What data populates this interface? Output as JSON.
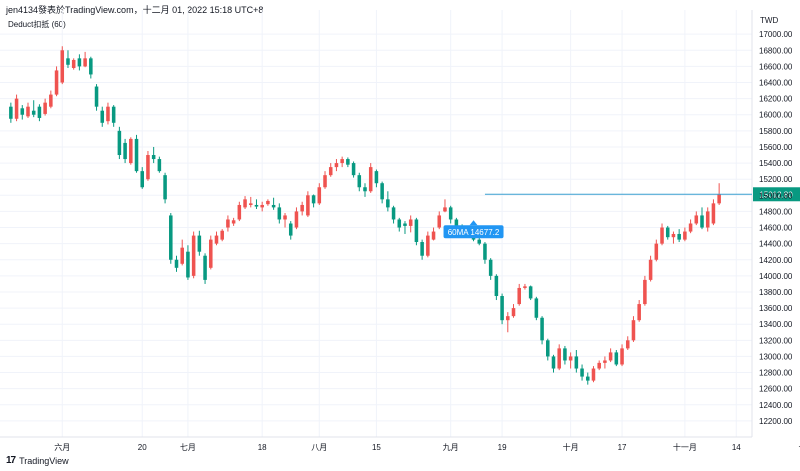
{
  "header": {
    "title": "jen4134發表於TradingView.com，十二月 01, 2022 15:18 UTC+8"
  },
  "indicator_label": "Deduct扣抵 (60)",
  "footer": {
    "brand": "TradingView",
    "logo": "17"
  },
  "colors": {
    "up": "#ef5350",
    "down": "#089981",
    "hline": "#3a9fd0",
    "ma_label": "#2196f3",
    "grid": "#f0f3fa"
  },
  "chart_data": {
    "type": "candlestick",
    "currency": "TWD",
    "ylim": [
      12000,
      17300
    ],
    "y_ticks": [
      12200,
      12400,
      12600,
      12800,
      13000,
      13200,
      13400,
      13600,
      13800,
      14000,
      14200,
      14400,
      14600,
      14800,
      15000,
      15200,
      15400,
      15600,
      15800,
      16000,
      16200,
      16400,
      16600,
      16800,
      17000
    ],
    "x_ticks": [
      {
        "label": "六月",
        "index": 9
      },
      {
        "label": "20",
        "index": 23
      },
      {
        "label": "七月",
        "index": 31
      },
      {
        "label": "18",
        "index": 44
      },
      {
        "label": "八月",
        "index": 54
      },
      {
        "label": "15",
        "index": 64
      },
      {
        "label": "九月",
        "index": 77
      },
      {
        "label": "19",
        "index": 86
      },
      {
        "label": "十月",
        "index": 98
      },
      {
        "label": "17",
        "index": 107
      },
      {
        "label": "十一月",
        "index": 118
      },
      {
        "label": "14",
        "index": 127
      },
      {
        "label": "十二月",
        "index": 140
      }
    ],
    "last_price": 15012.8,
    "ma_label": "60MA 14677.2",
    "ma_index": 81,
    "ma_value": 14677.2,
    "candles": [
      [
        16100,
        16150,
        15900,
        15950
      ],
      [
        15950,
        16250,
        15920,
        16200
      ],
      [
        16080,
        16120,
        15940,
        16000
      ],
      [
        15980,
        16150,
        15960,
        16100
      ],
      [
        16050,
        16180,
        15970,
        16000
      ],
      [
        16100,
        16130,
        15920,
        15960
      ],
      [
        16010,
        16200,
        15990,
        16150
      ],
      [
        16100,
        16300,
        16080,
        16250
      ],
      [
        16250,
        16600,
        16230,
        16550
      ],
      [
        16400,
        16850,
        16380,
        16800
      ],
      [
        16700,
        16800,
        16580,
        16620
      ],
      [
        16580,
        16700,
        16560,
        16680
      ],
      [
        16700,
        16750,
        16550,
        16600
      ],
      [
        16600,
        16780,
        16590,
        16700
      ],
      [
        16700,
        16720,
        16450,
        16500
      ],
      [
        16350,
        16380,
        16050,
        16100
      ],
      [
        16050,
        16100,
        15850,
        15900
      ],
      [
        15920,
        16150,
        15880,
        16100
      ],
      [
        16100,
        16120,
        15850,
        15900
      ],
      [
        15800,
        15850,
        15450,
        15500
      ],
      [
        15650,
        15700,
        15400,
        15450
      ],
      [
        15400,
        15720,
        15380,
        15700
      ],
      [
        15700,
        15750,
        15280,
        15300
      ],
      [
        15300,
        15350,
        15080,
        15100
      ],
      [
        15200,
        15550,
        15180,
        15500
      ],
      [
        15500,
        15600,
        15400,
        15450
      ],
      [
        15450,
        15480,
        15280,
        15300
      ],
      [
        15250,
        15280,
        14900,
        14950
      ],
      [
        14750,
        14780,
        14150,
        14200
      ],
      [
        14200,
        14250,
        14050,
        14100
      ],
      [
        14150,
        14450,
        14130,
        14350
      ],
      [
        14300,
        14380,
        13950,
        13980
      ],
      [
        14000,
        14550,
        13970,
        14500
      ],
      [
        14500,
        14560,
        14250,
        14300
      ],
      [
        14250,
        14280,
        13900,
        13950
      ],
      [
        14100,
        14500,
        14080,
        14450
      ],
      [
        14400,
        14550,
        14380,
        14500
      ],
      [
        14450,
        14580,
        14430,
        14560
      ],
      [
        14600,
        14750,
        14550,
        14700
      ],
      [
        14650,
        14720,
        14620,
        14690
      ],
      [
        14700,
        14920,
        14680,
        14880
      ],
      [
        14850,
        14990,
        14830,
        14950
      ],
      [
        14880,
        14980,
        14850,
        14900
      ],
      [
        14880,
        14950,
        14830,
        14860
      ],
      [
        14850,
        14920,
        14800,
        14880
      ],
      [
        14890,
        14950,
        14870,
        14930
      ],
      [
        14880,
        14970,
        14820,
        14850
      ],
      [
        14850,
        14900,
        14650,
        14700
      ],
      [
        14700,
        14780,
        14600,
        14750
      ],
      [
        14650,
        14680,
        14450,
        14500
      ],
      [
        14600,
        14850,
        14580,
        14800
      ],
      [
        14800,
        14920,
        14750,
        14880
      ],
      [
        14750,
        15050,
        14730,
        15000
      ],
      [
        15000,
        15010,
        14850,
        14900
      ],
      [
        14900,
        15150,
        14880,
        15100
      ],
      [
        15100,
        15300,
        15080,
        15250
      ],
      [
        15250,
        15400,
        15230,
        15350
      ],
      [
        15350,
        15450,
        15300,
        15400
      ],
      [
        15400,
        15480,
        15350,
        15450
      ],
      [
        15450,
        15470,
        15350,
        15380
      ],
      [
        15400,
        15420,
        15220,
        15250
      ],
      [
        15250,
        15280,
        15050,
        15100
      ],
      [
        15100,
        15150,
        14980,
        15050
      ],
      [
        15050,
        15400,
        15030,
        15350
      ],
      [
        15300,
        15320,
        15100,
        15150
      ],
      [
        15150,
        15170,
        14900,
        14950
      ],
      [
        14950,
        15050,
        14800,
        14850
      ],
      [
        14850,
        14870,
        14650,
        14700
      ],
      [
        14700,
        14720,
        14550,
        14600
      ],
      [
        14650,
        14680,
        14520,
        14620
      ],
      [
        14620,
        14750,
        14540,
        14700
      ],
      [
        14700,
        14720,
        14380,
        14420
      ],
      [
        14420,
        14450,
        14200,
        14250
      ],
      [
        14250,
        14550,
        14230,
        14500
      ],
      [
        14450,
        14600,
        14440,
        14550
      ],
      [
        14600,
        14800,
        14580,
        14750
      ],
      [
        14800,
        14950,
        14790,
        14850
      ],
      [
        14850,
        14870,
        14650,
        14700
      ],
      [
        14700,
        14720,
        14600,
        14620
      ],
      [
        14620,
        14640,
        14520,
        14550
      ],
      [
        14550,
        14620,
        14530,
        14600
      ],
      [
        14580,
        14600,
        14430,
        14450
      ],
      [
        14450,
        14480,
        14380,
        14400
      ],
      [
        14400,
        14420,
        14150,
        14200
      ],
      [
        14200,
        14220,
        13950,
        14000
      ],
      [
        14000,
        14020,
        13700,
        13750
      ],
      [
        13750,
        13780,
        13400,
        13450
      ],
      [
        13450,
        13550,
        13300,
        13500
      ],
      [
        13500,
        13650,
        13480,
        13600
      ],
      [
        13650,
        13900,
        13630,
        13850
      ],
      [
        13850,
        13900,
        13830,
        13870
      ],
      [
        13870,
        13880,
        13700,
        13720
      ],
      [
        13720,
        13740,
        13450,
        13480
      ],
      [
        13480,
        13500,
        13150,
        13200
      ],
      [
        13200,
        13220,
        12950,
        13000
      ],
      [
        13000,
        13020,
        12800,
        12850
      ],
      [
        12850,
        13150,
        12830,
        13100
      ],
      [
        13100,
        13130,
        12900,
        12950
      ],
      [
        12950,
        13050,
        12850,
        13000
      ],
      [
        13000,
        13080,
        12800,
        12850
      ],
      [
        12850,
        12900,
        12700,
        12750
      ],
      [
        12750,
        12800,
        12650,
        12700
      ],
      [
        12700,
        12880,
        12680,
        12850
      ],
      [
        12850,
        12950,
        12830,
        12920
      ],
      [
        12920,
        13000,
        12850,
        12950
      ],
      [
        12950,
        13100,
        12930,
        13050
      ],
      [
        13050,
        13080,
        12880,
        12900
      ],
      [
        12900,
        13150,
        12880,
        13100
      ],
      [
        13100,
        13250,
        13080,
        13200
      ],
      [
        13200,
        13500,
        13180,
        13450
      ],
      [
        13450,
        13700,
        13430,
        13650
      ],
      [
        13650,
        14000,
        13630,
        13950
      ],
      [
        13950,
        14250,
        13930,
        14200
      ],
      [
        14200,
        14450,
        14180,
        14400
      ],
      [
        14400,
        14650,
        14380,
        14600
      ],
      [
        14600,
        14620,
        14450,
        14480
      ],
      [
        14480,
        14550,
        14400,
        14520
      ],
      [
        14520,
        14580,
        14420,
        14450
      ],
      [
        14450,
        14600,
        14430,
        14550
      ],
      [
        14550,
        14700,
        14530,
        14650
      ],
      [
        14650,
        14800,
        14630,
        14750
      ],
      [
        14750,
        14850,
        14580,
        14600
      ],
      [
        14600,
        14850,
        14550,
        14800
      ],
      [
        14650,
        14950,
        14630,
        14900
      ],
      [
        14900,
        15150,
        14880,
        15012.8
      ]
    ]
  }
}
